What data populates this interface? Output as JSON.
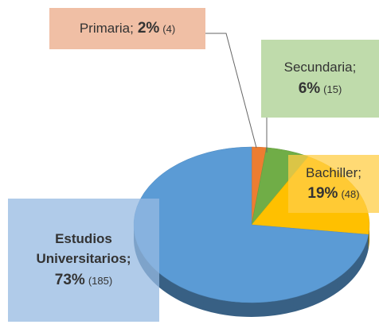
{
  "chart_data": {
    "type": "pie",
    "categories": [
      "Primaria;",
      "Secundaria;",
      "Bachiller;",
      "Estudios Universitarios;"
    ],
    "values": [
      2,
      6,
      19,
      73
    ],
    "value_labels": [
      "2%",
      "6%",
      "19%",
      "73%"
    ],
    "counts": [
      4,
      15,
      48,
      185
    ],
    "count_labels": [
      "(4)",
      "(15)",
      "(48)",
      "(185)"
    ],
    "colors": [
      "#ed7d31",
      "#70ad47",
      "#ffc000",
      "#5b9bd5"
    ]
  }
}
